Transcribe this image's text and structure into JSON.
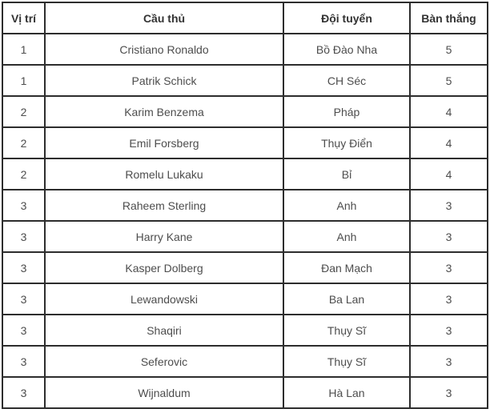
{
  "table": {
    "columns": {
      "position": "Vị trí",
      "player": "Cầu thủ",
      "team": "Đội tuyển",
      "goals": "Bàn thắng"
    },
    "rows": [
      {
        "position": "1",
        "player": "Cristiano Ronaldo",
        "team": "Bồ Đào Nha",
        "goals": "5"
      },
      {
        "position": "1",
        "player": "Patrik Schick",
        "team": "CH Séc",
        "goals": "5"
      },
      {
        "position": "2",
        "player": "Karim Benzema",
        "team": "Pháp",
        "goals": "4"
      },
      {
        "position": "2",
        "player": "Emil Forsberg",
        "team": "Thụy Điển",
        "goals": "4"
      },
      {
        "position": "2",
        "player": "Romelu Lukaku",
        "team": "Bỉ",
        "goals": "4"
      },
      {
        "position": "3",
        "player": "Raheem Sterling",
        "team": "Anh",
        "goals": "3"
      },
      {
        "position": "3",
        "player": "Harry Kane",
        "team": "Anh",
        "goals": "3"
      },
      {
        "position": "3",
        "player": "Kasper Dolberg",
        "team": "Đan Mạch",
        "goals": "3"
      },
      {
        "position": "3",
        "player": "Lewandowski",
        "team": "Ba Lan",
        "goals": "3"
      },
      {
        "position": "3",
        "player": "Shaqiri",
        "team": "Thụy Sĩ",
        "goals": "3"
      },
      {
        "position": "3",
        "player": "Seferovic",
        "team": "Thụy Sĩ",
        "goals": "3"
      },
      {
        "position": "3",
        "player": "Wijnaldum",
        "team": "Hà Lan",
        "goals": "3"
      }
    ],
    "colors": {
      "border": "#2d2d2d",
      "header_text": "#333333",
      "cell_text": "#4d4d4d",
      "background": "#ffffff"
    }
  },
  "chart_data": {
    "type": "table",
    "title": "",
    "columns": [
      "Vị trí",
      "Cầu thủ",
      "Đội tuyển",
      "Bàn thắng"
    ],
    "rows": [
      [
        "1",
        "Cristiano Ronaldo",
        "Bồ Đào Nha",
        "5"
      ],
      [
        "1",
        "Patrik Schick",
        "CH Séc",
        "5"
      ],
      [
        "2",
        "Karim Benzema",
        "Pháp",
        "4"
      ],
      [
        "2",
        "Emil Forsberg",
        "Thụy Điển",
        "4"
      ],
      [
        "2",
        "Romelu Lukaku",
        "Bỉ",
        "4"
      ],
      [
        "3",
        "Raheem Sterling",
        "Anh",
        "3"
      ],
      [
        "3",
        "Harry Kane",
        "Anh",
        "3"
      ],
      [
        "3",
        "Kasper Dolberg",
        "Đan Mạch",
        "3"
      ],
      [
        "3",
        "Lewandowski",
        "Ba Lan",
        "3"
      ],
      [
        "3",
        "Shaqiri",
        "Thụy Sĩ",
        "3"
      ],
      [
        "3",
        "Seferovic",
        "Thụy Sĩ",
        "3"
      ],
      [
        "3",
        "Wijnaldum",
        "Hà Lan",
        "3"
      ]
    ]
  }
}
